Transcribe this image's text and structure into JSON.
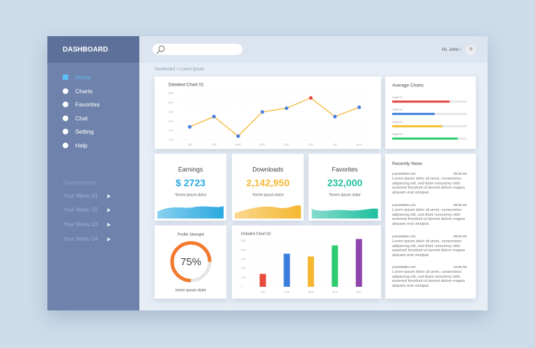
{
  "sidebar": {
    "title": "DASHBOARD",
    "menu": [
      "Home",
      "Charts",
      "Favorites",
      "Chat",
      "Setting",
      "Help"
    ],
    "active_color": "#5bc0f5",
    "section": "Development",
    "submenu": [
      "Your Menu 01",
      "Your Menu 02",
      "Your Menu 03",
      "Your Menu 04"
    ]
  },
  "header": {
    "greeting": "Hi, John !",
    "breadcrumb": "Dashboard > Lorem Ipsum"
  },
  "line_chart": {
    "type": "line",
    "title": "Detailed Chart 01",
    "categories": [
      "JAN",
      "FEB",
      "MAR",
      "APR",
      "MAY",
      "JUN",
      "JUL",
      "AUG"
    ],
    "values": [
      240,
      350,
      140,
      400,
      440,
      550,
      350,
      450
    ],
    "color": "#f5b731",
    "marker_colors": [
      "#4a7fe0",
      "#4a7fe0",
      "#4a7fe0",
      "#4a7fe0",
      "#4a7fe0",
      "#e8453c",
      "#4a7fe0",
      "#4a7fe0"
    ],
    "ylim": [
      100,
      600
    ],
    "yticks": [
      100,
      200,
      300,
      400,
      500,
      600
    ],
    "grid": true
  },
  "average_charts": {
    "type": "bar",
    "title": "Average Charts",
    "categories": [
      "Chart 01",
      "Chart 02",
      "Chart 03",
      "Chart 04"
    ],
    "values": [
      77,
      57,
      67,
      88
    ],
    "colors": [
      "#e0463c",
      "#3b7ddd",
      "#f5c02c",
      "#2ecc71"
    ],
    "xlim": [
      0,
      100
    ]
  },
  "stats": [
    {
      "label": "Earnings",
      "value": "$ 2723",
      "note": "*lorem ipsum dolor",
      "color": "#29a8e0"
    },
    {
      "label": "Downloads",
      "value": "2,142,950",
      "note": "*lorem ipsum dolor",
      "color": "#f5b731"
    },
    {
      "label": "Favorites",
      "value": "232,000",
      "note": "*lorem ipsum dolor",
      "color": "#1fbfa0"
    }
  ],
  "profile": {
    "type": "pie",
    "title": "Profile Strenght",
    "value": 75,
    "value_label": "75%",
    "xlim": [
      0,
      100
    ],
    "note": "lorem ipsum dolor",
    "color": "#f27a2e"
  },
  "bar_chart": {
    "type": "bar",
    "title": "Detailed Chart 02",
    "categories": [
      "JAN",
      "FEB",
      "MAR",
      "APR",
      "MAY"
    ],
    "values": [
      140,
      360,
      330,
      450,
      520
    ],
    "colors": [
      "#e84c3d",
      "#3b7ddd",
      "#f5b731",
      "#2ecc71",
      "#8e44ad"
    ],
    "ylim": [
      0,
      500
    ],
    "yticks": [
      0,
      100,
      200,
      300,
      400,
      500
    ],
    "grid": true
  },
  "news": {
    "title": "Recently News",
    "items": [
      {
        "source": "yourwebsite.com",
        "time": "05:30 AM",
        "text": "Lorem ipsum dolor sit amet, consectetur adipiscing elit, sed diam nonummy nibh euismod tincidunt ut laoreet dolore magna aliquam erat volutpat."
      },
      {
        "source": "yourwebsite.com",
        "time": "08:30 AM",
        "text": "Lorem ipsum dolor sit amet, consectetur adipiscing elit, sed diam nonummy nibh euismod tincidunt ut laoreet dolore magna aliquam erat volutpat."
      },
      {
        "source": "yourwebsite.com",
        "time": "08:50 AM",
        "text": "Lorem ipsum dolor sit amet, consectetur adipiscing elit, sed diam nonummy nibh euismod tincidunt ut laoreet dolore magna aliquam erat volutpat."
      },
      {
        "source": "yourwebsite.com",
        "time": "10:30 AM",
        "text": "Lorem ipsum dolor sit amet, consectetur adipiscing elit, sed diam nonummy nibh euismod tincidunt ut laoreet dolore magna aliquam erat volutpat."
      }
    ]
  }
}
